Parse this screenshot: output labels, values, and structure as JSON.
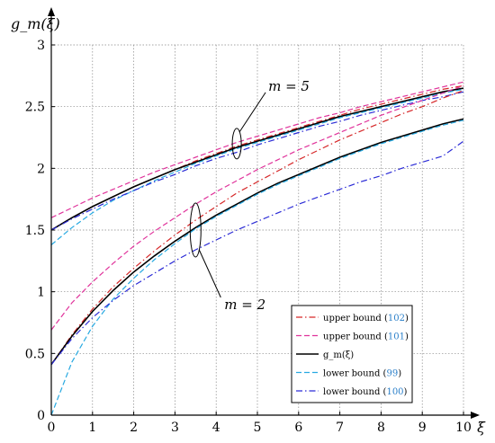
{
  "chart_data": {
    "type": "line",
    "xlabel": "ξ",
    "ylabel": "g_m(ξ)",
    "xlim": [
      0,
      10
    ],
    "ylim": [
      0,
      3
    ],
    "xticks": [
      "0",
      "1",
      "2",
      "3",
      "4",
      "5",
      "6",
      "7",
      "8",
      "9",
      "10"
    ],
    "yticks": [
      "0",
      "0.5",
      "1",
      "1.5",
      "2",
      "2.5",
      "3"
    ],
    "grid": true,
    "legend_position": "bottom-right",
    "annotations": [
      {
        "text": "m = 5",
        "x": 4.5,
        "y": 2.2
      },
      {
        "text": "m = 2",
        "x": 3.5,
        "y": 1.5
      }
    ],
    "legend": [
      {
        "text": "upper bound",
        "ref": "(102)",
        "color": "#d62728",
        "dash": "dashdot"
      },
      {
        "text": "upper bound",
        "ref": "(101)",
        "color": "#e0339b",
        "dash": "dashed"
      },
      {
        "text": "g_m(ξ)",
        "ref": "",
        "color": "#000000",
        "dash": "solid"
      },
      {
        "text": "lower bound",
        "ref": "(99)",
        "color": "#27a9e1",
        "dash": "dashed"
      },
      {
        "text": "lower bound",
        "ref": "(100)",
        "color": "#2b2bd6",
        "dash": "dashdot"
      }
    ],
    "x": [
      0,
      0.5,
      1,
      1.5,
      2,
      2.5,
      3,
      3.5,
      4,
      4.5,
      5,
      5.5,
      6,
      6.5,
      7,
      7.5,
      8,
      8.5,
      9,
      9.5,
      10
    ],
    "series": [
      {
        "group": "m=5",
        "name": "upper bound (102)",
        "color": "#d62728",
        "dash": "dashdot",
        "values": [
          1.5,
          1.6,
          1.69,
          1.77,
          1.85,
          1.92,
          1.99,
          2.06,
          2.12,
          2.18,
          2.23,
          2.28,
          2.33,
          2.38,
          2.43,
          2.48,
          2.52,
          2.56,
          2.6,
          2.64,
          2.67
        ]
      },
      {
        "group": "m=5",
        "name": "upper bound (101)",
        "color": "#e0339b",
        "dash": "dashed",
        "values": [
          1.6,
          1.68,
          1.76,
          1.83,
          1.9,
          1.97,
          2.03,
          2.09,
          2.15,
          2.21,
          2.26,
          2.31,
          2.36,
          2.41,
          2.45,
          2.5,
          2.54,
          2.58,
          2.62,
          2.66,
          2.7
        ]
      },
      {
        "group": "m=5",
        "name": "g_m(ξ)",
        "color": "#000000",
        "dash": "solid",
        "values": [
          1.5,
          1.6,
          1.69,
          1.77,
          1.85,
          1.92,
          1.99,
          2.05,
          2.11,
          2.17,
          2.22,
          2.27,
          2.32,
          2.37,
          2.42,
          2.46,
          2.5,
          2.54,
          2.58,
          2.62,
          2.65
        ]
      },
      {
        "group": "m=5",
        "name": "lower bound (99)",
        "color": "#27a9e1",
        "dash": "dashed",
        "values": [
          1.38,
          1.52,
          1.64,
          1.74,
          1.82,
          1.9,
          1.97,
          2.04,
          2.1,
          2.16,
          2.21,
          2.26,
          2.31,
          2.36,
          2.41,
          2.45,
          2.49,
          2.53,
          2.57,
          2.61,
          2.64
        ]
      },
      {
        "group": "m=5",
        "name": "lower bound (100)",
        "color": "#2b2bd6",
        "dash": "dashdot",
        "values": [
          1.5,
          1.59,
          1.67,
          1.75,
          1.82,
          1.89,
          1.95,
          2.02,
          2.08,
          2.13,
          2.19,
          2.24,
          2.29,
          2.34,
          2.38,
          2.43,
          2.47,
          2.51,
          2.55,
          2.58,
          2.62
        ]
      },
      {
        "group": "m=2",
        "name": "upper bound (102)",
        "color": "#d62728",
        "dash": "dashdot",
        "values": [
          0.41,
          0.65,
          0.86,
          1.04,
          1.19,
          1.33,
          1.46,
          1.58,
          1.69,
          1.8,
          1.89,
          1.98,
          2.07,
          2.15,
          2.23,
          2.3,
          2.37,
          2.44,
          2.5,
          2.57,
          2.63
        ]
      },
      {
        "group": "m=2",
        "name": "upper bound (101)",
        "color": "#e0339b",
        "dash": "dashed",
        "values": [
          0.69,
          0.91,
          1.08,
          1.23,
          1.37,
          1.49,
          1.6,
          1.71,
          1.81,
          1.9,
          1.99,
          2.07,
          2.15,
          2.22,
          2.29,
          2.36,
          2.43,
          2.49,
          2.55,
          2.61,
          2.67
        ]
      },
      {
        "group": "m=2",
        "name": "g_m(ξ)",
        "color": "#000000",
        "dash": "solid",
        "values": [
          0.41,
          0.64,
          0.84,
          1.01,
          1.16,
          1.29,
          1.41,
          1.52,
          1.62,
          1.71,
          1.8,
          1.88,
          1.95,
          2.02,
          2.09,
          2.15,
          2.21,
          2.26,
          2.31,
          2.36,
          2.4
        ]
      },
      {
        "group": "m=2",
        "name": "lower bound (99)",
        "color": "#27a9e1",
        "dash": "dashed",
        "values": [
          0.0,
          0.43,
          0.72,
          0.94,
          1.11,
          1.26,
          1.39,
          1.51,
          1.61,
          1.7,
          1.79,
          1.87,
          1.94,
          2.01,
          2.08,
          2.14,
          2.2,
          2.25,
          2.3,
          2.35,
          2.39
        ]
      },
      {
        "group": "m=2",
        "name": "lower bound (100)",
        "color": "#2b2bd6",
        "dash": "dashdot",
        "values": [
          0.41,
          0.62,
          0.79,
          0.93,
          1.05,
          1.15,
          1.25,
          1.34,
          1.42,
          1.5,
          1.57,
          1.64,
          1.71,
          1.77,
          1.83,
          1.89,
          1.94,
          2.0,
          2.05,
          2.1,
          2.22
        ]
      }
    ]
  }
}
